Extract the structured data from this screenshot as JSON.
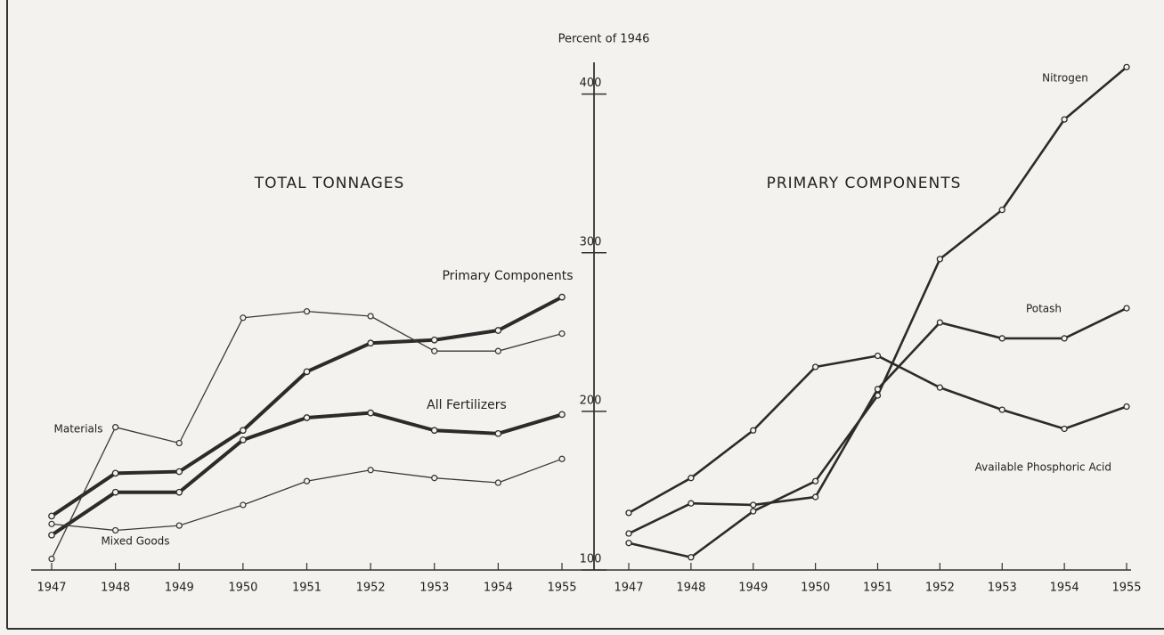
{
  "chart_data": [
    {
      "type": "line",
      "title": "TOTAL TONNAGES",
      "y_label": "Percent of 1946",
      "categories": [
        "1947",
        "1948",
        "1949",
        "1950",
        "1951",
        "1952",
        "1953",
        "1954",
        "1955"
      ],
      "ylim": [
        100,
        420
      ],
      "yticks": [
        100,
        200,
        300,
        400
      ],
      "series": [
        {
          "name": "Primary Components",
          "color": "#2b2b2b",
          "linewidth": 4,
          "values": [
            134,
            161,
            162,
            188,
            225,
            243,
            245,
            251,
            272
          ]
        },
        {
          "name": "All Fertilizers",
          "color": "#2b2b2b",
          "linewidth": 4,
          "values": [
            122,
            149,
            149,
            182,
            196,
            199,
            188,
            186,
            198
          ]
        },
        {
          "name": "Materials",
          "color": "#3a3a3a",
          "linewidth": 1.3,
          "values": [
            107,
            190,
            180,
            259,
            263,
            260,
            238,
            238,
            249
          ]
        },
        {
          "name": "Mixed Goods",
          "color": "#3a3a3a",
          "linewidth": 1.3,
          "values": [
            129,
            125,
            128,
            141,
            156,
            163,
            158,
            155,
            170
          ]
        }
      ]
    },
    {
      "type": "line",
      "title": "PRIMARY COMPONENTS",
      "categories": [
        "1947",
        "1948",
        "1949",
        "1950",
        "1951",
        "1952",
        "1953",
        "1954",
        "1955"
      ],
      "ylim": [
        100,
        420
      ],
      "series": [
        {
          "name": "Nitrogen",
          "color": "#2b2b2b",
          "linewidth": 2.6,
          "values": [
            117,
            108,
            137,
            156,
            210,
            296,
            327,
            384,
            417
          ]
        },
        {
          "name": "Potash",
          "color": "#2b2b2b",
          "linewidth": 2.6,
          "values": [
            123,
            142,
            141,
            146,
            214,
            256,
            246,
            246,
            265
          ]
        },
        {
          "name": "Available Phosphoric Acid",
          "color": "#2b2b2b",
          "linewidth": 2.6,
          "values": [
            136,
            158,
            188,
            228,
            235,
            215,
            201,
            189,
            203
          ]
        }
      ]
    }
  ]
}
